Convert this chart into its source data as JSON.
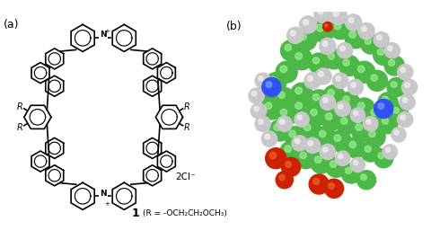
{
  "background_color": "#ffffff",
  "label_a": "(a)",
  "label_b": "(b)",
  "compound_label": "1",
  "r_group": "(R = -OCH₂CH₂OCH₃)",
  "chloride": "2Cl⁻",
  "r_label": "R",
  "fig_width": 4.8,
  "fig_height": 2.66,
  "dpi": 100,
  "atom_colors": {
    "C": "#4db847",
    "H": "#c8c8c8",
    "N": "#3050f8",
    "O": "#cc2200"
  }
}
